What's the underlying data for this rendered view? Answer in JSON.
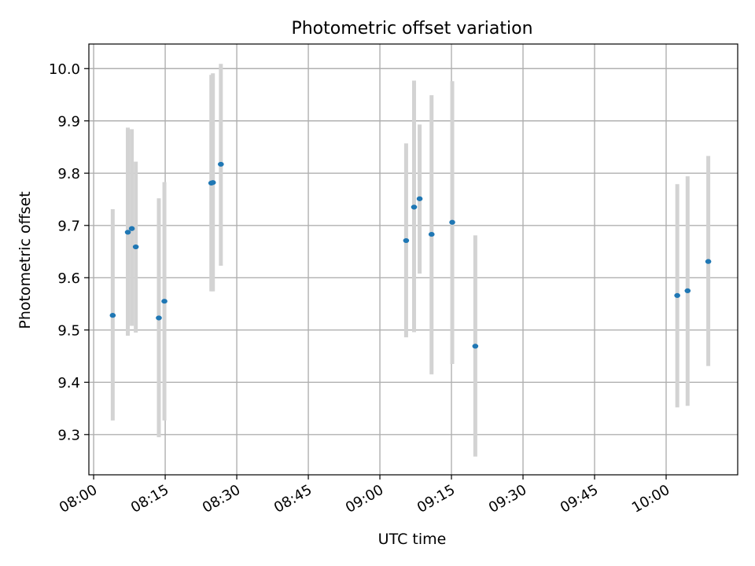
{
  "chart_data": {
    "type": "scatter",
    "title": "Photometric offset variation",
    "xlabel": "UTC time",
    "ylabel": "Photometric offset",
    "xlim": [
      "07:59",
      "10:15"
    ],
    "ylim": [
      9.223,
      10.047
    ],
    "xticks": [
      "08:00",
      "08:15",
      "08:30",
      "08:45",
      "09:00",
      "09:15",
      "09:30",
      "09:45",
      "10:00"
    ],
    "yticks": [
      "9.3",
      "9.4",
      "9.5",
      "9.6",
      "9.7",
      "9.8",
      "9.9",
      "10.0"
    ],
    "grid": true,
    "colors": {
      "point": "#1f77b4",
      "errorbar": "#d3d3d3",
      "grid": "#b0b0b0"
    },
    "points": [
      {
        "x": "08:04:00",
        "y": 9.528,
        "ylow": 9.327,
        "yhigh": 9.731
      },
      {
        "x": "08:07:10",
        "y": 9.687,
        "ylow": 9.489,
        "yhigh": 9.887
      },
      {
        "x": "08:08:00",
        "y": 9.694,
        "ylow": 9.508,
        "yhigh": 9.884
      },
      {
        "x": "08:08:50",
        "y": 9.659,
        "ylow": 9.495,
        "yhigh": 9.822
      },
      {
        "x": "08:13:40",
        "y": 9.523,
        "ylow": 9.295,
        "yhigh": 9.752
      },
      {
        "x": "08:14:50",
        "y": 9.555,
        "ylow": 9.327,
        "yhigh": 9.783
      },
      {
        "x": "08:24:40",
        "y": 9.781,
        "ylow": 9.574,
        "yhigh": 9.988
      },
      {
        "x": "08:25:00",
        "y": 9.782,
        "ylow": 9.574,
        "yhigh": 9.991
      },
      {
        "x": "08:26:40",
        "y": 9.817,
        "ylow": 9.623,
        "yhigh": 10.009
      },
      {
        "x": "09:05:30",
        "y": 9.671,
        "ylow": 9.486,
        "yhigh": 9.857
      },
      {
        "x": "09:07:10",
        "y": 9.735,
        "ylow": 9.496,
        "yhigh": 9.977
      },
      {
        "x": "09:08:20",
        "y": 9.751,
        "ylow": 9.608,
        "yhigh": 9.893
      },
      {
        "x": "09:10:50",
        "y": 9.683,
        "ylow": 9.415,
        "yhigh": 9.949
      },
      {
        "x": "09:15:10",
        "y": 9.706,
        "ylow": 9.435,
        "yhigh": 9.976
      },
      {
        "x": "09:20:00",
        "y": 9.469,
        "ylow": 9.258,
        "yhigh": 9.681
      },
      {
        "x": "10:02:20",
        "y": 9.566,
        "ylow": 9.352,
        "yhigh": 9.779
      },
      {
        "x": "10:04:30",
        "y": 9.575,
        "ylow": 9.355,
        "yhigh": 9.794
      },
      {
        "x": "10:08:50",
        "y": 9.631,
        "ylow": 9.431,
        "yhigh": 9.833
      }
    ]
  }
}
